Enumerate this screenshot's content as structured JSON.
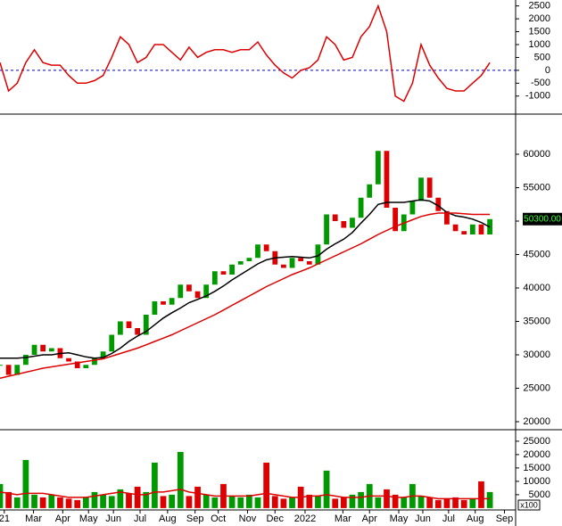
{
  "chart_data": [
    {
      "type": "line",
      "ylim": [
        -1700,
        2730
      ],
      "yticks": [
        -1000,
        -500,
        0,
        500,
        1000,
        1500,
        2000,
        2500
      ],
      "xlim": [
        0,
        60
      ],
      "hline": 0,
      "hline_color": "#0000cc",
      "series": [
        {
          "color": "#dd0000",
          "values": [
            300,
            -800,
            -500,
            300,
            800,
            300,
            200,
            200,
            -200,
            -500,
            -500,
            -400,
            -200,
            500,
            1300,
            1000,
            300,
            500,
            1000,
            1000,
            700,
            400,
            900,
            500,
            700,
            800,
            800,
            700,
            800,
            800,
            1100,
            600,
            200,
            -100,
            -300,
            0,
            100,
            400,
            1300,
            1000,
            400,
            500,
            1300,
            1700,
            2500,
            1500,
            -1000,
            -1200,
            -500,
            1000,
            200,
            -300,
            -700,
            -800,
            -800,
            -500,
            -200,
            300
          ]
        }
      ]
    },
    {
      "type": "candlestick",
      "ylim": [
        18800,
        66000
      ],
      "yticks": [
        20000,
        25000,
        30000,
        35000,
        40000,
        45000,
        50000,
        55000,
        60000
      ],
      "xlim": [
        0,
        60
      ],
      "up_color": "#009900",
      "down_color": "#dd0000",
      "last_value_label": "50300.00",
      "values": [
        28500,
        27000,
        28500,
        30000,
        31500,
        30500,
        31000,
        29500,
        29000,
        28000,
        28500,
        29500,
        30500,
        33000,
        35000,
        34000,
        33000,
        36000,
        38000,
        37500,
        38500,
        40500,
        39500,
        38500,
        40500,
        42500,
        42000,
        43500,
        44000,
        44500,
        46500,
        45500,
        43500,
        43000,
        44500,
        44000,
        43500,
        46500,
        51000,
        50000,
        49000,
        50500,
        53500,
        55500,
        60500,
        52000,
        48500,
        51000,
        53000,
        56500,
        53500,
        51500,
        49500,
        48500,
        48000,
        49500,
        48000,
        50300
      ],
      "series": [
        {
          "color": "#000000",
          "values": [
            29500,
            29500,
            29500,
            29600,
            29800,
            30000,
            30000,
            30200,
            30300,
            30000,
            29700,
            29500,
            29600,
            30200,
            31000,
            32000,
            32800,
            33500,
            34500,
            35500,
            36300,
            37000,
            37800,
            38300,
            38800,
            39500,
            40300,
            41200,
            42000,
            42800,
            43600,
            44200,
            44500,
            44600,
            44700,
            44600,
            44500,
            44800,
            45800,
            46600,
            47300,
            48300,
            49700,
            51000,
            52500,
            52800,
            52800,
            52800,
            53000,
            53200,
            53000,
            52300,
            51300,
            50800,
            50600,
            50300,
            49800,
            49100
          ]
        },
        {
          "color": "#dd0000",
          "values": [
            26500,
            26800,
            27100,
            27400,
            27700,
            28000,
            28200,
            28400,
            28600,
            28800,
            29000,
            29200,
            29400,
            29800,
            30200,
            30600,
            31000,
            31500,
            32000,
            32500,
            33000,
            33600,
            34200,
            34800,
            35400,
            36000,
            36700,
            37400,
            38100,
            38800,
            39500,
            40200,
            40800,
            41400,
            42000,
            42500,
            43000,
            43600,
            44200,
            44800,
            45400,
            46000,
            46600,
            47300,
            48000,
            48600,
            49200,
            49700,
            50200,
            50700,
            51000,
            51200,
            51200,
            51200,
            51100,
            51000,
            51000,
            51000
          ]
        }
      ]
    },
    {
      "type": "bar",
      "ylim": [
        -700,
        29300
      ],
      "yticks": [
        5000,
        10000,
        15000,
        20000,
        25000
      ],
      "xlim": [
        0,
        60
      ],
      "unit_label": "x100",
      "up_color": "#009900",
      "down_color": "#dd0000",
      "values": [
        9000,
        6000,
        4000,
        18000,
        5000,
        4000,
        5000,
        4000,
        3500,
        3000,
        4000,
        6000,
        5000,
        4500,
        7000,
        5500,
        8000,
        6000,
        17000,
        4500,
        5000,
        21000,
        4500,
        8000,
        5000,
        4000,
        9000,
        4500,
        4000,
        5000,
        4000,
        17000,
        4500,
        3500,
        4000,
        8000,
        5000,
        4500,
        14000,
        3500,
        4000,
        5000,
        6000,
        9000,
        4000,
        7000,
        5000,
        4000,
        9000,
        4500,
        4000,
        3000,
        3500,
        4000,
        3000,
        3500,
        10000,
        6000
      ],
      "series": [
        {
          "color": "#dd0000",
          "values": [
            6000,
            5500,
            5000,
            5500,
            5500,
            5500,
            5000,
            4500,
            4000,
            4000,
            4000,
            4500,
            5000,
            5500,
            6000,
            5500,
            5000,
            5000,
            6000,
            6000,
            6500,
            7000,
            6000,
            5500,
            5000,
            4500,
            4500,
            4500,
            4500,
            4500,
            5000,
            5500,
            5000,
            4500,
            4000,
            4000,
            4500,
            4500,
            5000,
            4500,
            4000,
            4000,
            4000,
            4500,
            4500,
            4500,
            4000,
            4000,
            4500,
            4500,
            4000,
            3500,
            3500,
            3500,
            3500,
            3500,
            3500,
            3500
          ]
        }
      ],
      "xticks": [
        {
          "value": 0.5,
          "label": "21"
        },
        {
          "value": 3.9,
          "label": "Mar"
        },
        {
          "value": 7.3,
          "label": "Apr"
        },
        {
          "value": 10.3,
          "label": "May"
        },
        {
          "value": 13.2,
          "label": "Jun"
        },
        {
          "value": 16.3,
          "label": "Jul"
        },
        {
          "value": 19.5,
          "label": "Aug"
        },
        {
          "value": 22.7,
          "label": "Sep"
        },
        {
          "value": 25.4,
          "label": "Oct"
        },
        {
          "value": 28.8,
          "label": "Nov"
        },
        {
          "value": 32,
          "label": "Dec"
        },
        {
          "value": 35.5,
          "label": "2022"
        },
        {
          "value": 39.9,
          "label": "Mar"
        },
        {
          "value": 43,
          "label": "Apr"
        },
        {
          "value": 46.4,
          "label": "May"
        },
        {
          "value": 49.2,
          "label": "Jun"
        },
        {
          "value": 52.2,
          "label": "Jul"
        },
        {
          "value": 55.3,
          "label": "Aug"
        },
        {
          "value": 58.7,
          "label": "Sep"
        }
      ]
    }
  ]
}
